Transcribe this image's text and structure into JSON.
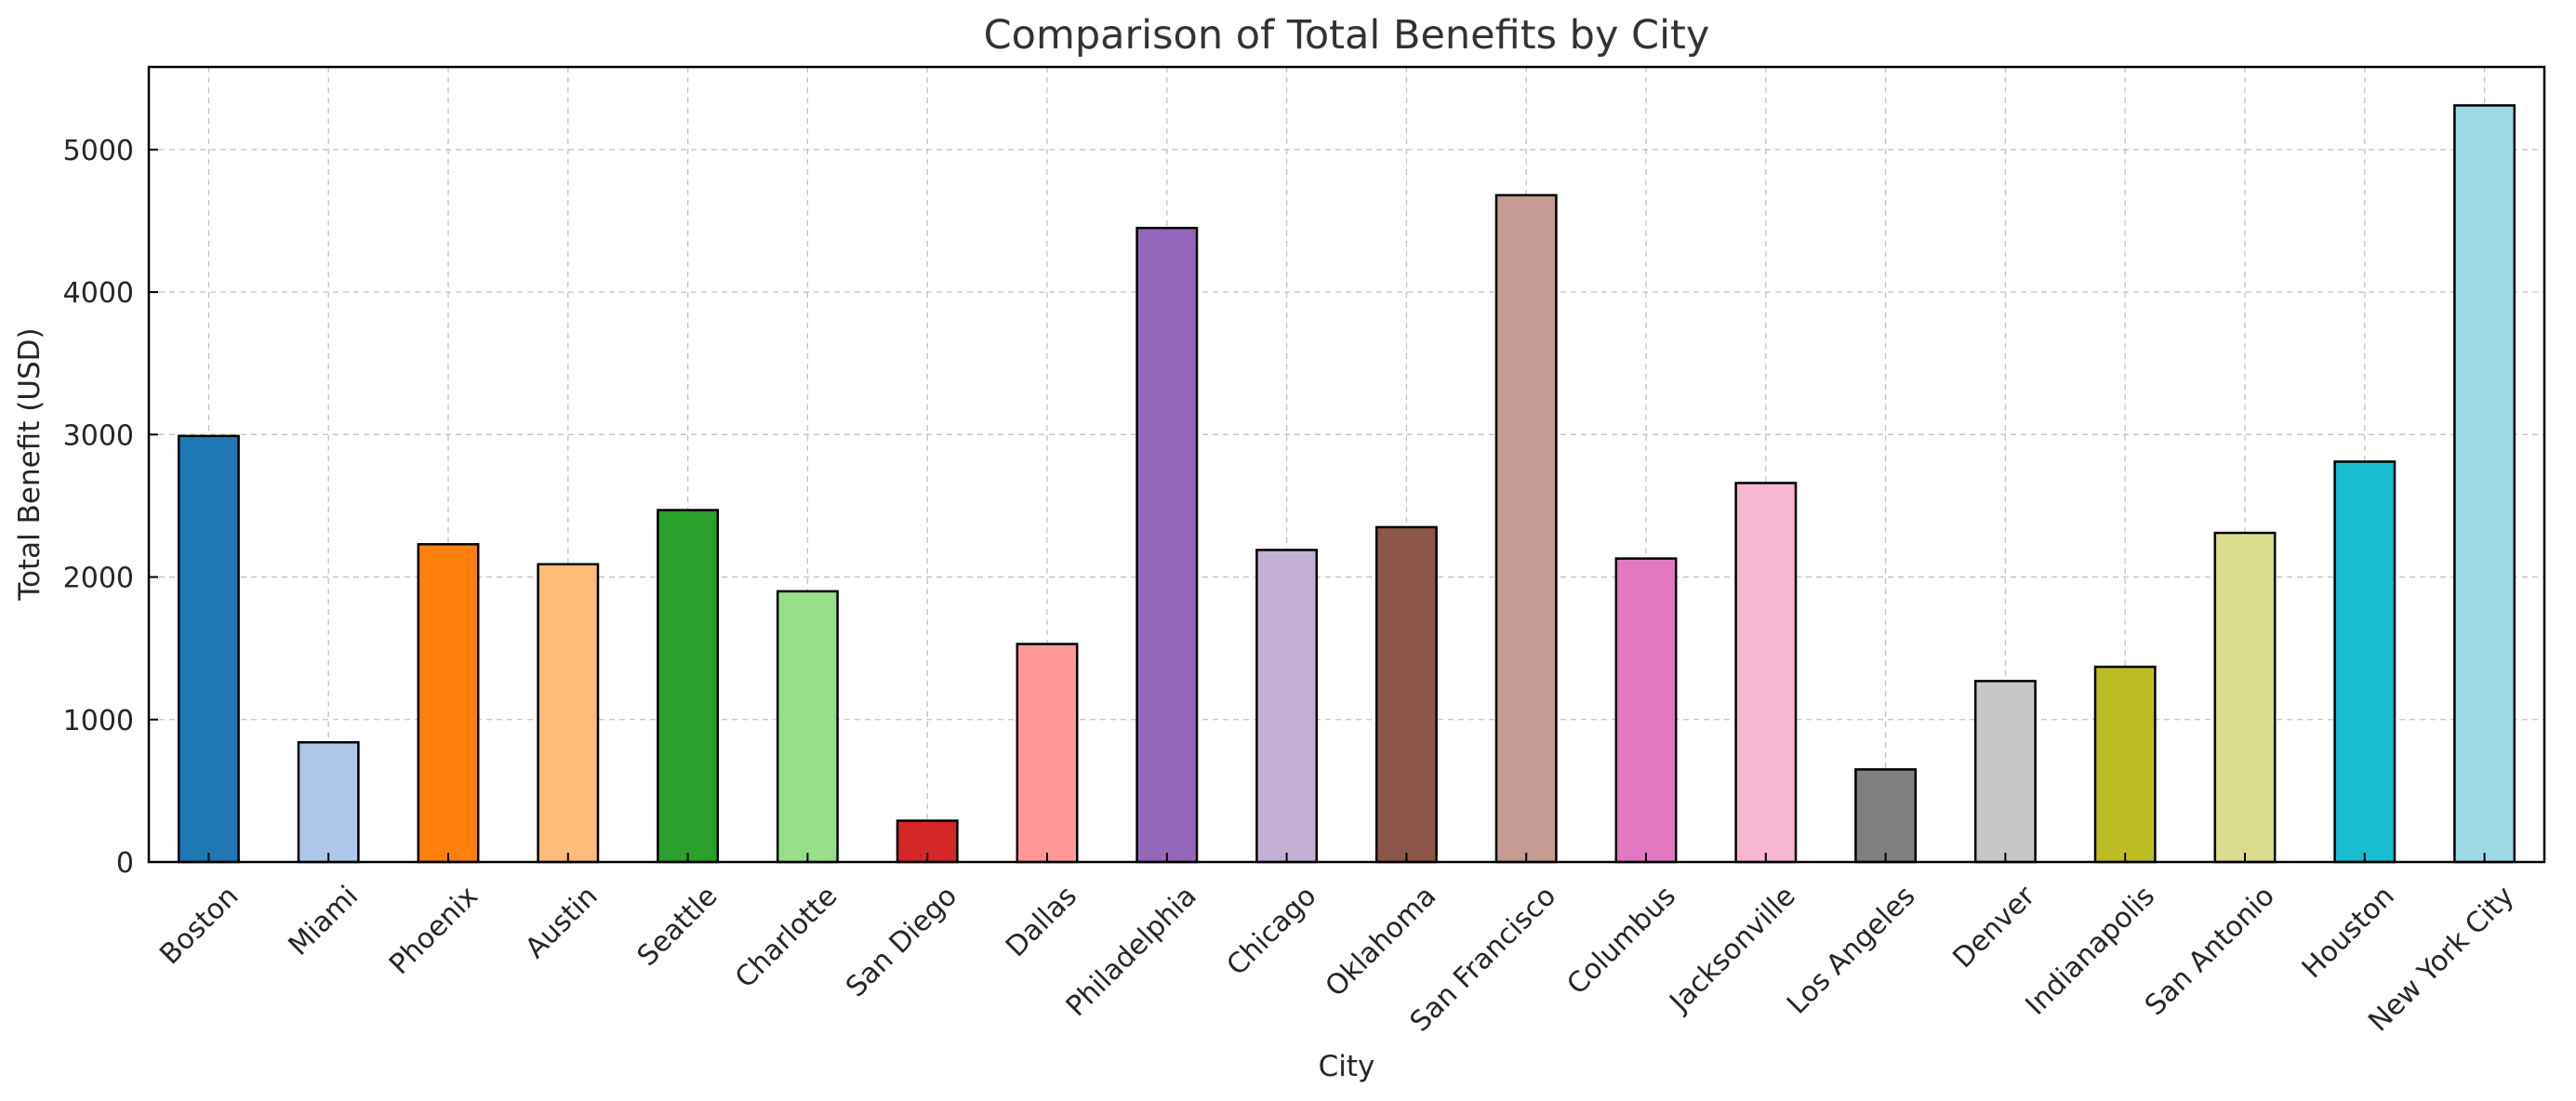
{
  "chart_data": {
    "type": "bar",
    "title": "Comparison of Total Benefits by City",
    "xlabel": "City",
    "ylabel": "Total Benefit (USD)",
    "ylim": [
      0,
      5580
    ],
    "yticks": [
      0,
      1000,
      2000,
      3000,
      4000,
      5000
    ],
    "grid": true,
    "legend": "none",
    "categories": [
      "Boston",
      "Miami",
      "Phoenix",
      "Austin",
      "Seattle",
      "Charlotte",
      "San Diego",
      "Dallas",
      "Philadelphia",
      "Chicago",
      "Oklahoma",
      "San Francisco",
      "Columbus",
      "Jacksonville",
      "Los Angeles",
      "Denver",
      "Indianapolis",
      "San Antonio",
      "Houston",
      "New York City"
    ],
    "values": [
      2990,
      840,
      2230,
      2090,
      2470,
      1900,
      290,
      1530,
      4450,
      2190,
      2350,
      4680,
      2130,
      2660,
      650,
      1270,
      1370,
      2310,
      2810,
      5310
    ],
    "colors": [
      "#1f77b4",
      "#aec7e8",
      "#ff7f0e",
      "#ffbb78",
      "#2ca02c",
      "#98df8a",
      "#d62728",
      "#ff9896",
      "#9467bd",
      "#c5b0d5",
      "#8c564b",
      "#c49c94",
      "#e377c2",
      "#f7b6d2",
      "#7f7f7f",
      "#c7c7c7",
      "#bcbd22",
      "#dbdb8d",
      "#17becf",
      "#9edae5"
    ]
  }
}
